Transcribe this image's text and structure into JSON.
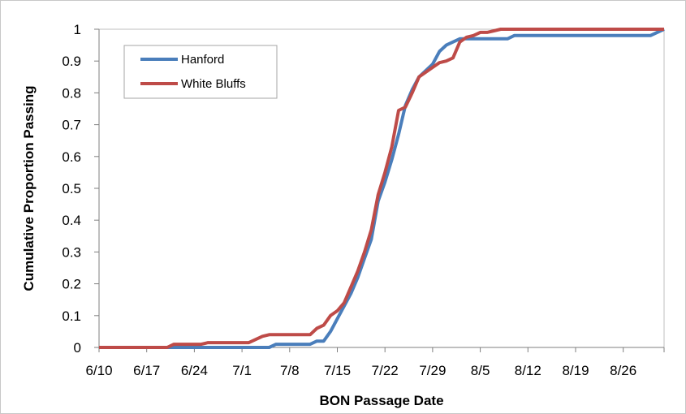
{
  "chart_data": {
    "type": "line",
    "title": "",
    "xlabel": "BON Passage Date",
    "ylabel": "Cumulative Proportion Passing",
    "x_ticks": [
      "6/10",
      "6/17",
      "6/24",
      "7/1",
      "7/8",
      "7/15",
      "7/22",
      "7/29",
      "8/5",
      "8/12",
      "8/19",
      "8/26"
    ],
    "x_tick_day_step": 7,
    "xlim": [
      "6/10",
      "9/1"
    ],
    "ylim": [
      0,
      1
    ],
    "y_ticks": [
      0,
      0.1,
      0.2,
      0.3,
      0.4,
      0.5,
      0.6,
      0.7,
      0.8,
      0.9,
      1
    ],
    "grid": false,
    "legend": "top-left",
    "series": [
      {
        "name": "Hanford",
        "color": "#4a7ebb",
        "points": [
          [
            "6/10",
            0
          ],
          [
            "7/5",
            0
          ],
          [
            "7/6",
            0.01
          ],
          [
            "7/11",
            0.01
          ],
          [
            "7/12",
            0.02
          ],
          [
            "7/13",
            0.02
          ],
          [
            "7/14",
            0.05
          ],
          [
            "7/15",
            0.09
          ],
          [
            "7/16",
            0.13
          ],
          [
            "7/17",
            0.17
          ],
          [
            "7/18",
            0.22
          ],
          [
            "7/19",
            0.28
          ],
          [
            "7/20",
            0.34
          ],
          [
            "7/21",
            0.46
          ],
          [
            "7/22",
            0.52
          ],
          [
            "7/23",
            0.59
          ],
          [
            "7/24",
            0.67
          ],
          [
            "7/25",
            0.76
          ],
          [
            "7/26",
            0.81
          ],
          [
            "7/27",
            0.85
          ],
          [
            "7/28",
            0.87
          ],
          [
            "7/29",
            0.89
          ],
          [
            "7/30",
            0.93
          ],
          [
            "7/31",
            0.95
          ],
          [
            "8/1",
            0.96
          ],
          [
            "8/2",
            0.97
          ],
          [
            "8/9",
            0.97
          ],
          [
            "8/10",
            0.98
          ],
          [
            "8/30",
            0.98
          ],
          [
            "9/1",
            1.0
          ]
        ]
      },
      {
        "name": "White Bluffs",
        "color": "#be4b48",
        "points": [
          [
            "6/10",
            0
          ],
          [
            "6/20",
            0
          ],
          [
            "6/21",
            0.01
          ],
          [
            "6/25",
            0.01
          ],
          [
            "6/26",
            0.015
          ],
          [
            "7/2",
            0.015
          ],
          [
            "7/3",
            0.025
          ],
          [
            "7/4",
            0.035
          ],
          [
            "7/5",
            0.04
          ],
          [
            "7/11",
            0.04
          ],
          [
            "7/12",
            0.06
          ],
          [
            "7/13",
            0.07
          ],
          [
            "7/14",
            0.1
          ],
          [
            "7/15",
            0.115
          ],
          [
            "7/16",
            0.14
          ],
          [
            "7/17",
            0.19
          ],
          [
            "7/18",
            0.24
          ],
          [
            "7/19",
            0.3
          ],
          [
            "7/20",
            0.37
          ],
          [
            "7/21",
            0.48
          ],
          [
            "7/22",
            0.55
          ],
          [
            "7/23",
            0.63
          ],
          [
            "7/24",
            0.745
          ],
          [
            "7/25",
            0.755
          ],
          [
            "7/26",
            0.8
          ],
          [
            "7/27",
            0.85
          ],
          [
            "7/28",
            0.865
          ],
          [
            "7/29",
            0.88
          ],
          [
            "7/30",
            0.895
          ],
          [
            "7/31",
            0.9
          ],
          [
            "8/1",
            0.91
          ],
          [
            "8/2",
            0.96
          ],
          [
            "8/3",
            0.975
          ],
          [
            "8/4",
            0.98
          ],
          [
            "8/5",
            0.99
          ],
          [
            "8/6",
            0.99
          ],
          [
            "8/7",
            0.995
          ],
          [
            "8/8",
            1.0
          ],
          [
            "9/1",
            1.0
          ]
        ]
      }
    ]
  }
}
